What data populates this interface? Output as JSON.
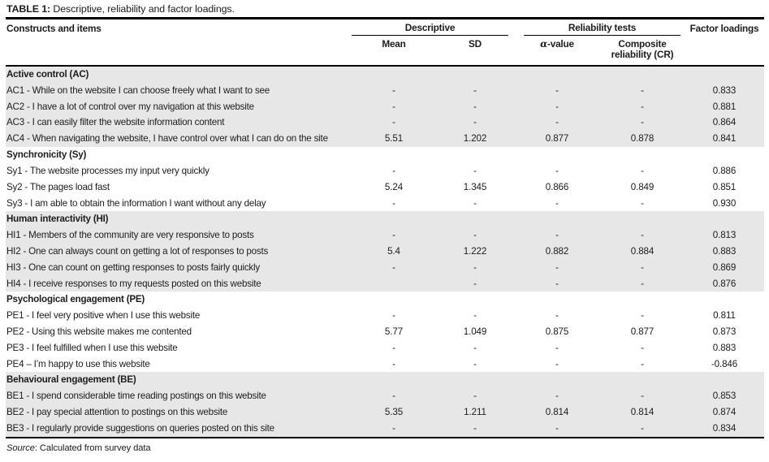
{
  "table": {
    "title_label": "TABLE 1:",
    "title_text": " Descriptive, reliability and factor loadings.",
    "columns": {
      "items": "Constructs and items",
      "descriptive_group": "Descriptive",
      "reliability_group": "Reliability tests",
      "factor_loadings": "Factor loadings",
      "mean": "Mean",
      "sd": "SD",
      "alpha_symbol": "α",
      "alpha_suffix": "-value",
      "composite_reliability": "Composite reliability (CR)"
    },
    "sections": [
      {
        "header": "Active control (AC)",
        "shaded": true,
        "rows": [
          {
            "item": "AC1 - While on the website I can choose freely what I want to see",
            "mean": "-",
            "sd": "-",
            "alpha": "-",
            "cr": "-",
            "fl": "0.833"
          },
          {
            "item": "AC2 - I have a lot of control over my navigation at this website",
            "mean": "-",
            "sd": "-",
            "alpha": "-",
            "cr": "-",
            "fl": "0.881"
          },
          {
            "item": "AC3 - I can easily filter the website information content",
            "mean": "-",
            "sd": "-",
            "alpha": "-",
            "cr": "-",
            "fl": "0.864"
          },
          {
            "item": "AC4 - When navigating the website, I have control over what I can do on the site",
            "mean": "5.51",
            "sd": "1.202",
            "alpha": "0.877",
            "cr": "0.878",
            "fl": "0.841"
          }
        ]
      },
      {
        "header": "Synchronicity (Sy)",
        "shaded": false,
        "rows": [
          {
            "item": "Sy1 - The website processes my input very quickly",
            "mean": "-",
            "sd": "-",
            "alpha": "-",
            "cr": "-",
            "fl": "0.886"
          },
          {
            "item": "Sy2 - The pages load fast",
            "mean": "5.24",
            "sd": "1.345",
            "alpha": "0.866",
            "cr": "0.849",
            "fl": "0.851"
          },
          {
            "item": "Sy3 - I am able to obtain the information I want without any delay",
            "mean": "-",
            "sd": "-",
            "alpha": "-",
            "cr": "-",
            "fl": "0.930"
          }
        ]
      },
      {
        "header": "Human interactivity (HI)",
        "shaded": true,
        "rows": [
          {
            "item": "HI1 - Members of the community are very responsive to posts",
            "mean": "-",
            "sd": "-",
            "alpha": "-",
            "cr": "-",
            "fl": "0.813"
          },
          {
            "item": "HI2 - One can always count on getting a lot of responses to posts",
            "mean": "5.4",
            "sd": "1.222",
            "alpha": "0.882",
            "cr": "0.884",
            "fl": "0.883"
          },
          {
            "item": "HI3 - One can count on getting responses to posts fairly quickly",
            "mean": "-",
            "sd": "-",
            "alpha": "-",
            "cr": "-",
            "fl": "0.869"
          },
          {
            "item": "HI4 - I receive responses to my requests posted on this website",
            "mean": "",
            "sd": "-",
            "alpha": "-",
            "cr": "-",
            "fl": "0.876"
          }
        ]
      },
      {
        "header": "Psychological engagement (PE)",
        "shaded": false,
        "rows": [
          {
            "item": "PE1 - I feel very positive when I use this website",
            "mean": "-",
            "sd": "-",
            "alpha": "-",
            "cr": "-",
            "fl": "0.811"
          },
          {
            "item": "PE2 - Using this website makes me contented",
            "mean": "5.77",
            "sd": "1.049",
            "alpha": "0.875",
            "cr": "0.877",
            "fl": "0.873"
          },
          {
            "item": "PE3 - I feel fulfilled when I use this website",
            "mean": "-",
            "sd": "-",
            "alpha": "-",
            "cr": "-",
            "fl": "0.883"
          },
          {
            "item": "PE4 – I’m happy to use this website",
            "mean": "-",
            "sd": "-",
            "alpha": "-",
            "cr": "-",
            "fl": "-0.846"
          }
        ]
      },
      {
        "header": "Behavioural engagement (BE)",
        "shaded": true,
        "rows": [
          {
            "item": "BE1 - I spend considerable time reading postings on this website",
            "mean": "-",
            "sd": "-",
            "alpha": "-",
            "cr": "-",
            "fl": "0.853"
          },
          {
            "item": "BE2 - I pay special attention to postings on this website",
            "mean": "5.35",
            "sd": "1.211",
            "alpha": "0.814",
            "cr": "0.814",
            "fl": "0.874"
          },
          {
            "item": "BE3 - I regularly provide suggestions on queries posted on this site",
            "mean": "-",
            "sd": "-",
            "alpha": "-",
            "cr": "-",
            "fl": "0.834"
          }
        ]
      }
    ],
    "source_label": "Source",
    "source_text": ": Calculated from survey data"
  },
  "colors": {
    "shaded_row_bg": "#e7e7e7",
    "rule": "#000000",
    "text": "#1c1c1c"
  }
}
